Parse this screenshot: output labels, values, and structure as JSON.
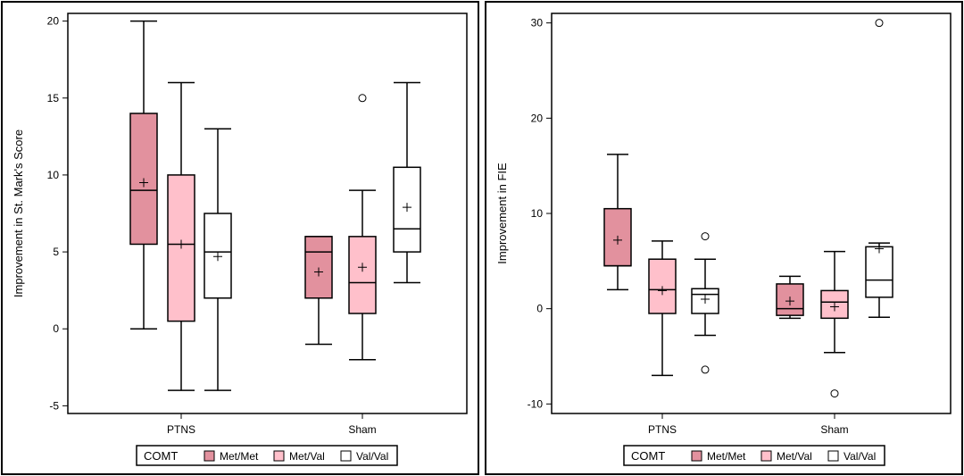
{
  "colors": {
    "met_met": "#e2919e",
    "met_val": "#ffc0cb",
    "val_val": "#ffffff",
    "line": "#000000"
  },
  "chart_data": [
    {
      "type": "box",
      "xlabel": "",
      "ylabel": "Improvement in St. Mark's Score",
      "ylim": [
        -5.5,
        20.5
      ],
      "yticks": [
        -5,
        0,
        5,
        10,
        15,
        20
      ],
      "ytick_labels": [
        "-5",
        "0",
        "5",
        "10",
        "15",
        "20"
      ],
      "categories": [
        "PTNS",
        "Sham"
      ],
      "legend": {
        "title": "COMT",
        "entries": [
          "Met/Met",
          "Met/Val",
          "Val/Val"
        ],
        "placement": "bottom"
      },
      "series": [
        {
          "name": "Met/Met",
          "boxes": [
            {
              "category": "PTNS",
              "min": 0,
              "q1": 5.5,
              "median": 9,
              "q3": 14,
              "max": 20,
              "mean": 9.5,
              "outliers": []
            },
            {
              "category": "Sham",
              "min": -1,
              "q1": 2,
              "median": 5,
              "q3": 6,
              "max": 6,
              "mean": 3.7,
              "outliers": []
            }
          ]
        },
        {
          "name": "Met/Val",
          "boxes": [
            {
              "category": "PTNS",
              "min": -4,
              "q1": 0.5,
              "median": 5.5,
              "q3": 10,
              "max": 16,
              "mean": 5.5,
              "outliers": []
            },
            {
              "category": "Sham",
              "min": -2,
              "q1": 1,
              "median": 3,
              "q3": 6,
              "max": 9,
              "mean": 4,
              "outliers": [
                15
              ]
            }
          ]
        },
        {
          "name": "Val/Val",
          "boxes": [
            {
              "category": "PTNS",
              "min": -4,
              "q1": 2,
              "median": 5,
              "q3": 7.5,
              "max": 13,
              "mean": 4.7,
              "outliers": []
            },
            {
              "category": "Sham",
              "min": 3,
              "q1": 5,
              "median": 6.5,
              "q3": 10.5,
              "max": 16,
              "mean": 7.9,
              "outliers": []
            }
          ]
        }
      ]
    },
    {
      "type": "box",
      "xlabel": "",
      "ylabel": "Improvement in FIE",
      "ylim": [
        -11,
        31
      ],
      "yticks": [
        -10,
        0,
        10,
        20,
        30
      ],
      "ytick_labels": [
        "-10",
        "0",
        "10",
        "20",
        "30"
      ],
      "categories": [
        "PTNS",
        "Sham"
      ],
      "legend": {
        "title": "COMT",
        "entries": [
          "Met/Met",
          "Met/Val",
          "Val/Val"
        ],
        "placement": "bottom"
      },
      "series": [
        {
          "name": "Met/Met",
          "boxes": [
            {
              "category": "PTNS",
              "min": 2,
              "q1": 4.5,
              "median": 4.5,
              "q3": 10.5,
              "max": 16.2,
              "mean": 7.2,
              "outliers": []
            },
            {
              "category": "Sham",
              "min": -1,
              "q1": -0.7,
              "median": 0,
              "q3": 2.6,
              "max": 3.4,
              "mean": 0.8,
              "outliers": []
            }
          ]
        },
        {
          "name": "Met/Val",
          "boxes": [
            {
              "category": "PTNS",
              "min": -7,
              "q1": -0.5,
              "median": 2,
              "q3": 5.2,
              "max": 7.1,
              "mean": 1.9,
              "outliers": []
            },
            {
              "category": "Sham",
              "min": -4.6,
              "q1": -1,
              "median": 0.7,
              "q3": 1.9,
              "max": 6,
              "mean": 0.2,
              "outliers": [
                -8.9
              ]
            }
          ]
        },
        {
          "name": "Val/Val",
          "boxes": [
            {
              "category": "PTNS",
              "min": -2.8,
              "q1": -0.5,
              "median": 1.5,
              "q3": 2.1,
              "max": 5.2,
              "mean": 1,
              "outliers": [
                7.6,
                -6.4
              ]
            },
            {
              "category": "Sham",
              "min": -0.9,
              "q1": 1.2,
              "median": 3,
              "q3": 6.5,
              "max": 6.9,
              "mean": 6.3,
              "outliers": [
                30
              ]
            }
          ]
        }
      ]
    }
  ]
}
